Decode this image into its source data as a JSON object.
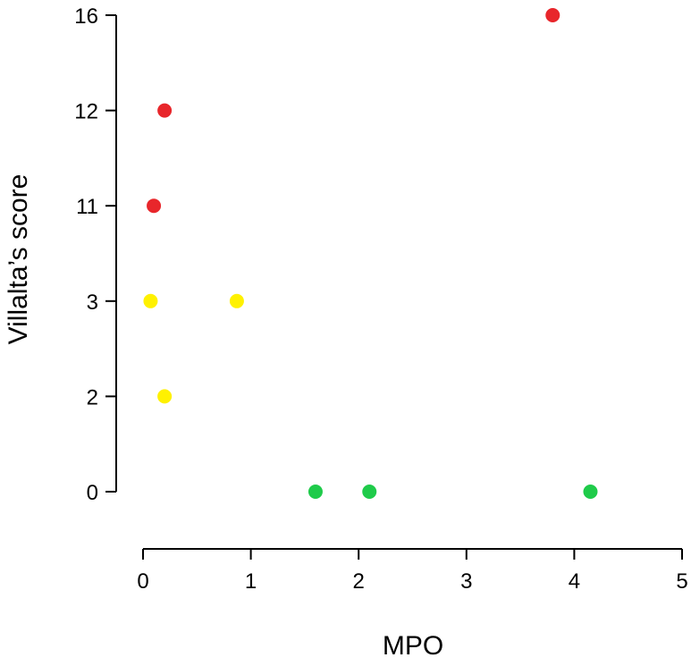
{
  "chart_data": {
    "type": "scatter",
    "title": "",
    "xlabel": "MPO",
    "ylabel": "Villalta’s score",
    "xlim": [
      0,
      5
    ],
    "x_ticks": [
      "0",
      "1",
      "2",
      "3",
      "4",
      "5"
    ],
    "y_tick_labels": [
      "0",
      "2",
      "3",
      "11",
      "12",
      "16"
    ],
    "y_axis_note": "categorical (equally spaced) axis",
    "grid": false,
    "legend": "none",
    "series": [
      {
        "name": "red",
        "color": "#e8262b",
        "points": [
          {
            "x": 0.1,
            "y": "11"
          },
          {
            "x": 0.2,
            "y": "12"
          },
          {
            "x": 3.8,
            "y": "16"
          }
        ]
      },
      {
        "name": "yellow",
        "color": "#fff100",
        "points": [
          {
            "x": 0.07,
            "y": "3"
          },
          {
            "x": 0.87,
            "y": "3"
          },
          {
            "x": 0.2,
            "y": "2"
          }
        ]
      },
      {
        "name": "green",
        "color": "#1fcb4a",
        "points": [
          {
            "x": 1.6,
            "y": "0"
          },
          {
            "x": 2.1,
            "y": "0"
          },
          {
            "x": 4.15,
            "y": "0"
          }
        ]
      }
    ]
  }
}
